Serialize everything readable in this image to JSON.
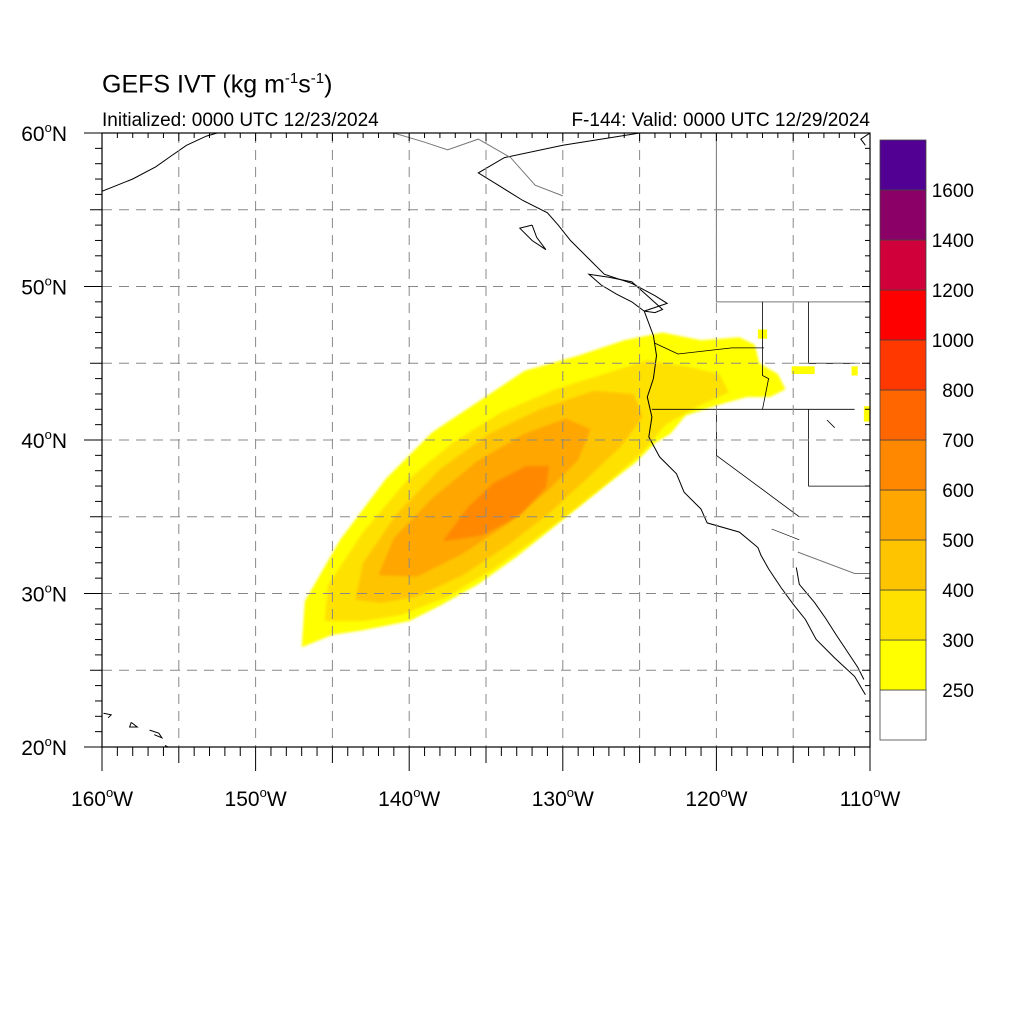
{
  "header": {
    "title_main": "GEFS IVT (kg m",
    "title_exp1": "-1",
    "title_mid": "s",
    "title_exp2": "-1",
    "title_end": ")",
    "initialized": "Initialized: 0000 UTC 12/23/2024",
    "valid": "F-144: Valid: 0000 UTC 12/29/2024"
  },
  "map": {
    "lon_range": [
      -160,
      -110
    ],
    "lat_range": [
      20,
      60
    ],
    "lat_labels": [
      "60",
      "50",
      "40",
      "30",
      "20"
    ],
    "lat_suffix": "N",
    "lon_labels": [
      "160",
      "150",
      "140",
      "130",
      "120",
      "110"
    ],
    "lon_suffix": "W",
    "degree_symbol": "o",
    "grid": "dashed every 5 degrees",
    "field": "Integrated water vapor transport plume extending from about 147W 27N northeast to the Oregon/California coast"
  },
  "colorbar": {
    "labels": [
      "250",
      "300",
      "400",
      "500",
      "600",
      "700",
      "800",
      "1000",
      "1200",
      "1400",
      "1600"
    ],
    "colors": [
      "#ffffff",
      "#ffff00",
      "#ffe100",
      "#ffc400",
      "#ffa600",
      "#ff8800",
      "#ff6600",
      "#ff3800",
      "#ff0000",
      "#d0003a",
      "#8b0066",
      "#520094"
    ]
  }
}
